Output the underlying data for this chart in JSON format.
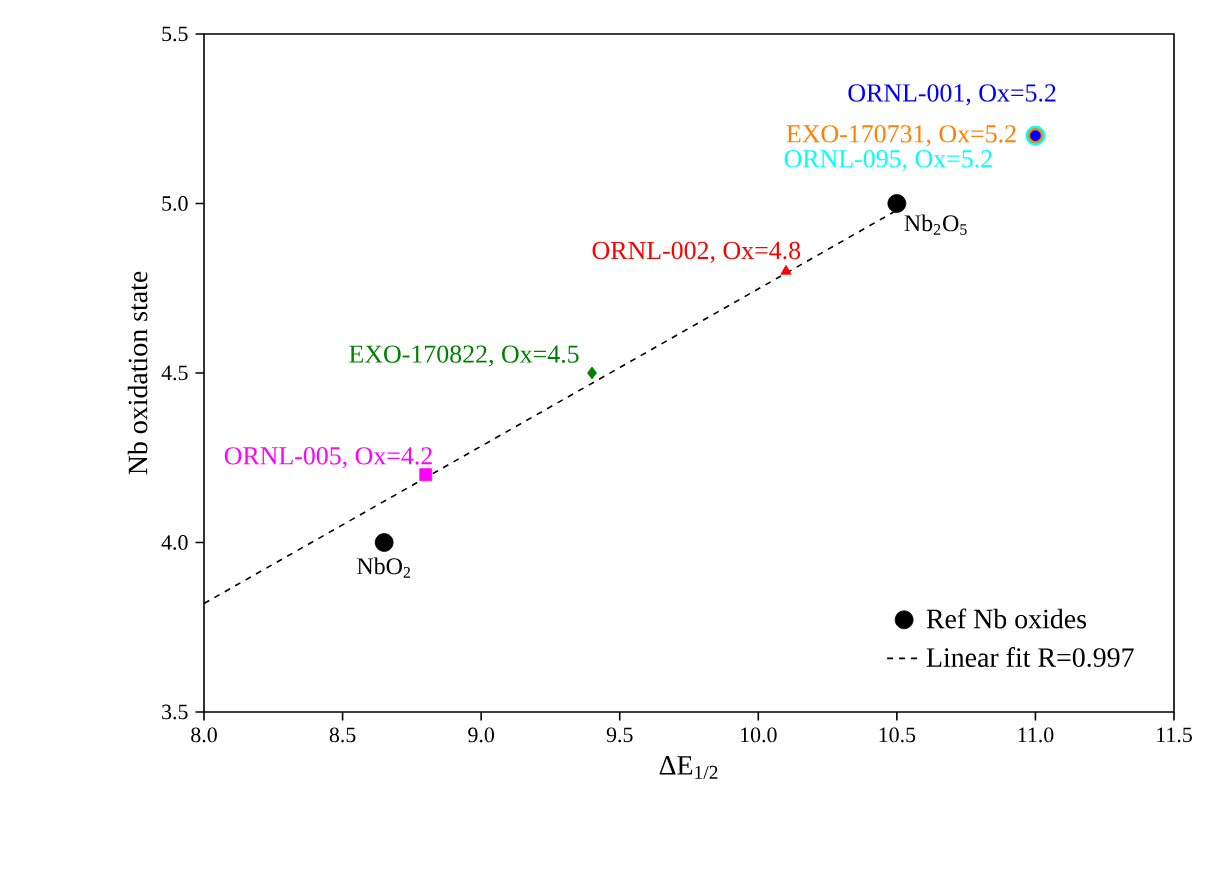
{
  "chart_data": {
    "type": "scatter",
    "xlabel": "ΔE$_{1/2}$",
    "ylabel": "Nb oxidation state",
    "xlim": [
      8.0,
      11.5
    ],
    "ylim": [
      3.5,
      5.5
    ],
    "xticks": [
      {
        "value": 8.0,
        "label": "8.0"
      },
      {
        "value": 8.5,
        "label": "8.5"
      },
      {
        "value": 9.0,
        "label": "9.0"
      },
      {
        "value": 9.5,
        "label": "9.5"
      },
      {
        "value": 10.0,
        "label": "10.0"
      },
      {
        "value": 10.5,
        "label": "10.5"
      },
      {
        "value": 11.0,
        "label": "11.0"
      },
      {
        "value": 11.5,
        "label": "11.5"
      }
    ],
    "yticks": [
      {
        "value": 3.5,
        "label": "3.5"
      },
      {
        "value": 4.0,
        "label": "4.0"
      },
      {
        "value": 4.5,
        "label": "4.5"
      },
      {
        "value": 5.0,
        "label": "5.0"
      },
      {
        "value": 5.5,
        "label": "5.5"
      }
    ],
    "legend": "bottom right",
    "grid": false,
    "series": [
      {
        "name": "ORNL-001, Ox=5.2",
        "color": "#0000ff",
        "marker": "circle",
        "x": [
          11.0
        ],
        "values": [
          5.2
        ]
      },
      {
        "name": "EXO-170731, Ox=5.2",
        "color": "#ff8000",
        "marker": "circle",
        "x": [
          11.0
        ],
        "values": [
          5.2
        ]
      },
      {
        "name": "ORNL-095, Ox=5.2",
        "color": "#00ffff",
        "marker": "circle",
        "x": [
          11.0
        ],
        "values": [
          5.2
        ]
      },
      {
        "name": "ORNL-002, Ox=4.8",
        "color": "#ff0000",
        "marker": "triangle",
        "x": [
          10.1
        ],
        "values": [
          4.8
        ]
      },
      {
        "name": "EXO-170822, Ox=4.5",
        "color": "#008000",
        "marker": "diamond",
        "x": [
          9.4
        ],
        "values": [
          4.5
        ]
      },
      {
        "name": "ORNL-005, Ox=4.2",
        "color": "#ff00ff",
        "marker": "square",
        "x": [
          8.8
        ],
        "values": [
          4.2
        ]
      },
      {
        "name": "Ref Nb oxides",
        "color": "#000000",
        "marker": "circle",
        "x": [
          8.65,
          10.5
        ],
        "values": [
          4.0,
          5.0
        ]
      },
      {
        "name": "Linear fit R=0.997",
        "type": "line",
        "color": "#000000",
        "marker": "none",
        "line_style": "dashed",
        "x": [
          8.0,
          10.5
        ],
        "values": [
          3.82,
          4.98
        ]
      }
    ],
    "annotations": [
      {
        "text": "NbO$_{2}$",
        "x": 8.65,
        "y": 4.0
      },
      {
        "text": "Nb$_{2}$O$_{5}$",
        "x": 10.5,
        "y": 5.0
      }
    ]
  }
}
